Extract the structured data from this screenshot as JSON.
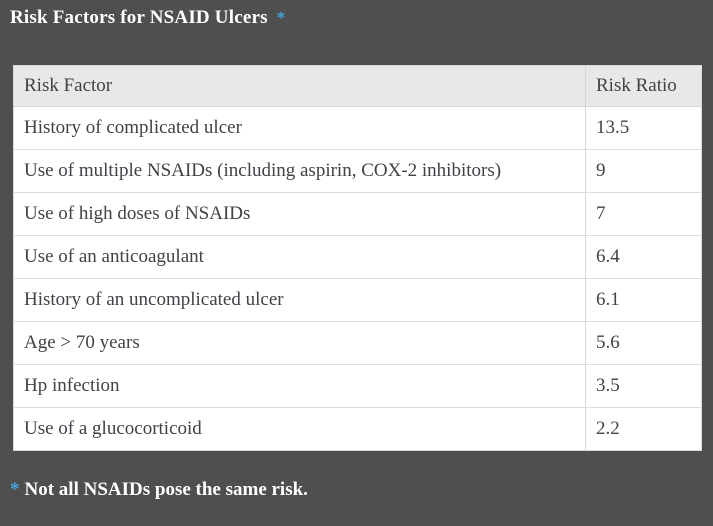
{
  "colors": {
    "page_background": "#4f4f4f",
    "accent_blue": "#44a2da",
    "table_text": "#3f4247",
    "header_background": "#e8e8e8",
    "row_background": "#ffffff",
    "row_border": "#dddddd"
  },
  "title": {
    "text": "Risk Factors for NSAID Ulcers",
    "asterisk": "*"
  },
  "table": {
    "headers": [
      "Risk Factor",
      "Risk Ratio"
    ],
    "rows": [
      {
        "factor": "History of complicated ulcer",
        "ratio": "13.5"
      },
      {
        "factor": "Use of multiple NSAIDs (including aspirin, COX-2 inhibitors)",
        "ratio": "9"
      },
      {
        "factor": "Use of high doses of NSAIDs",
        "ratio": "7"
      },
      {
        "factor": "Use of an anticoagulant",
        "ratio": "6.4"
      },
      {
        "factor": "History of an uncomplicated ulcer",
        "ratio": "6.1"
      },
      {
        "factor": "Age > 70 years",
        "ratio": "5.6"
      },
      {
        "factor": "Hp infection",
        "ratio": "3.5"
      },
      {
        "factor": "Use of a glucocorticoid",
        "ratio": "2.2"
      }
    ]
  },
  "footnote": {
    "asterisk": "*",
    "text": "Not all NSAIDs pose the same risk."
  }
}
